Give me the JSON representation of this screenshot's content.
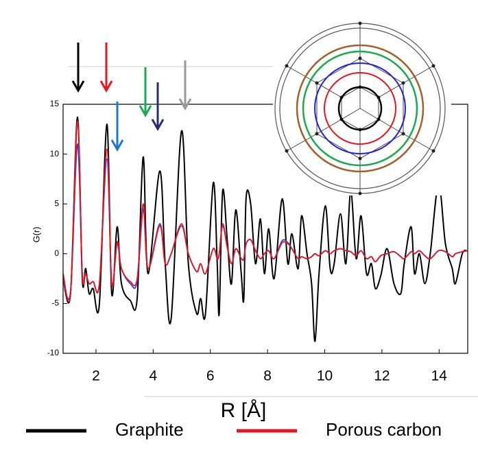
{
  "chart_data": {
    "type": "line",
    "x_label": "R [Å]",
    "y_label": "G(r)",
    "x": [
      0.85,
      1.11,
      1.35,
      1.52,
      1.64,
      1.76,
      1.9,
      2.12,
      2.38,
      2.55,
      2.74,
      2.89,
      3.2,
      3.44,
      3.65,
      3.82,
      4.23,
      4.42,
      4.63,
      4.99,
      5.23,
      5.52,
      5.66,
      5.83,
      6.1,
      6.24,
      6.31,
      6.43,
      6.6,
      6.74,
      6.89,
      7.08,
      7.17,
      7.25,
      7.41,
      7.58,
      7.75,
      7.89,
      8.04,
      8.23,
      8.51,
      8.71,
      8.85,
      9.07,
      9.19,
      9.38,
      9.54,
      9.66,
      9.8,
      10.02,
      10.19,
      10.33,
      10.55,
      10.74,
      10.91,
      11.1,
      11.27,
      11.46,
      11.63,
      11.77,
      11.96,
      12.18,
      12.42,
      12.66,
      12.78,
      13.02,
      13.14,
      13.31,
      13.5,
      13.69,
      13.98,
      14.22,
      14.46,
      14.57,
      14.81,
      14.98
    ],
    "series": [
      {
        "name": "Graphite",
        "color": "#000000",
        "values": [
          -2.5,
          -4,
          13.7,
          -2.5,
          -1.5,
          -4,
          -3.5,
          -5,
          13,
          -4,
          2.7,
          -3,
          -4.7,
          -4.5,
          9.7,
          -2,
          8.3,
          -1,
          -6.5,
          12.3,
          -1,
          -6,
          -4.5,
          -6,
          7.1,
          -1,
          -6,
          6.3,
          1,
          -3,
          4.4,
          -2,
          -4.5,
          5.6,
          5,
          -1,
          3.5,
          -2,
          2.5,
          -2.5,
          5.5,
          -1,
          2,
          -1.5,
          3.8,
          0,
          -3,
          -8.8,
          -2,
          4.8,
          -1.5,
          -1,
          4,
          -1,
          6.3,
          -0.5,
          3.8,
          -2,
          -1,
          -3.5,
          -2.2,
          0.5,
          -3,
          -4,
          -1,
          2.7,
          -2,
          0,
          -3,
          0,
          7,
          1,
          -1.5,
          -3,
          0,
          0.3
        ]
      },
      {
        "color": "#3a3ad8",
        "values": [
          -2.5,
          -3.8,
          11,
          -2,
          -2,
          -3,
          -2.8,
          -3,
          9.5,
          -3,
          1,
          -1.5,
          -3,
          -2.8,
          4.5,
          -1.5,
          3,
          -1,
          0,
          2.8,
          0,
          -1.8,
          -1,
          -2,
          0.5,
          -0.5,
          0,
          2.8,
          0.5,
          -1,
          0.5,
          -0.5,
          -0.5,
          1,
          1.4,
          0.3,
          -0.5,
          0,
          0.3,
          -0.5,
          1.3,
          1.1,
          0.5,
          -0.5,
          -0.3,
          -0.5,
          -0.3,
          0,
          -0.2,
          0.3,
          0,
          0.3,
          0.5,
          0.3,
          0.2,
          -0.2,
          0.3,
          -0.5,
          -0.3,
          -0.8,
          -0.2,
          0,
          0.2,
          -0.3,
          -0.5,
          0.2,
          0,
          0.3,
          -0.2,
          -0.5,
          0.3,
          0.2,
          -0.3,
          0,
          0.2,
          0.3
        ]
      },
      {
        "name": "Porous carbon",
        "color": "#e8141e",
        "values": [
          -2,
          -4,
          13.3,
          -2,
          -2,
          -3,
          -2.8,
          -3,
          10.5,
          -3,
          1.2,
          -1.5,
          -2.8,
          -2.5,
          5,
          -1.5,
          2.8,
          -1,
          0,
          3,
          0,
          -1.8,
          -1,
          -2,
          0.5,
          -0.5,
          0,
          3,
          0.5,
          -1,
          0.5,
          -0.5,
          -0.5,
          1,
          1.4,
          0.3,
          -0.5,
          0,
          0.3,
          -0.5,
          1.1,
          1,
          0.5,
          -0.5,
          -0.3,
          -0.5,
          -0.3,
          0,
          -0.2,
          0.3,
          0,
          0.3,
          0.5,
          0.3,
          0.2,
          -0.2,
          0.3,
          -0.5,
          -0.3,
          -0.8,
          -0.2,
          0,
          0.2,
          -0.3,
          -0.5,
          0.2,
          0,
          0.3,
          -0.2,
          -0.5,
          0.3,
          0.2,
          -0.3,
          0,
          0.2,
          0.3
        ]
      }
    ],
    "xlim": [
      0.85,
      15
    ],
    "ylim": [
      -10,
      15
    ],
    "xticks": [
      2,
      4,
      6,
      8,
      10,
      12,
      14
    ],
    "yticks": [
      -10,
      -5,
      0,
      5,
      10,
      15
    ]
  }
}
